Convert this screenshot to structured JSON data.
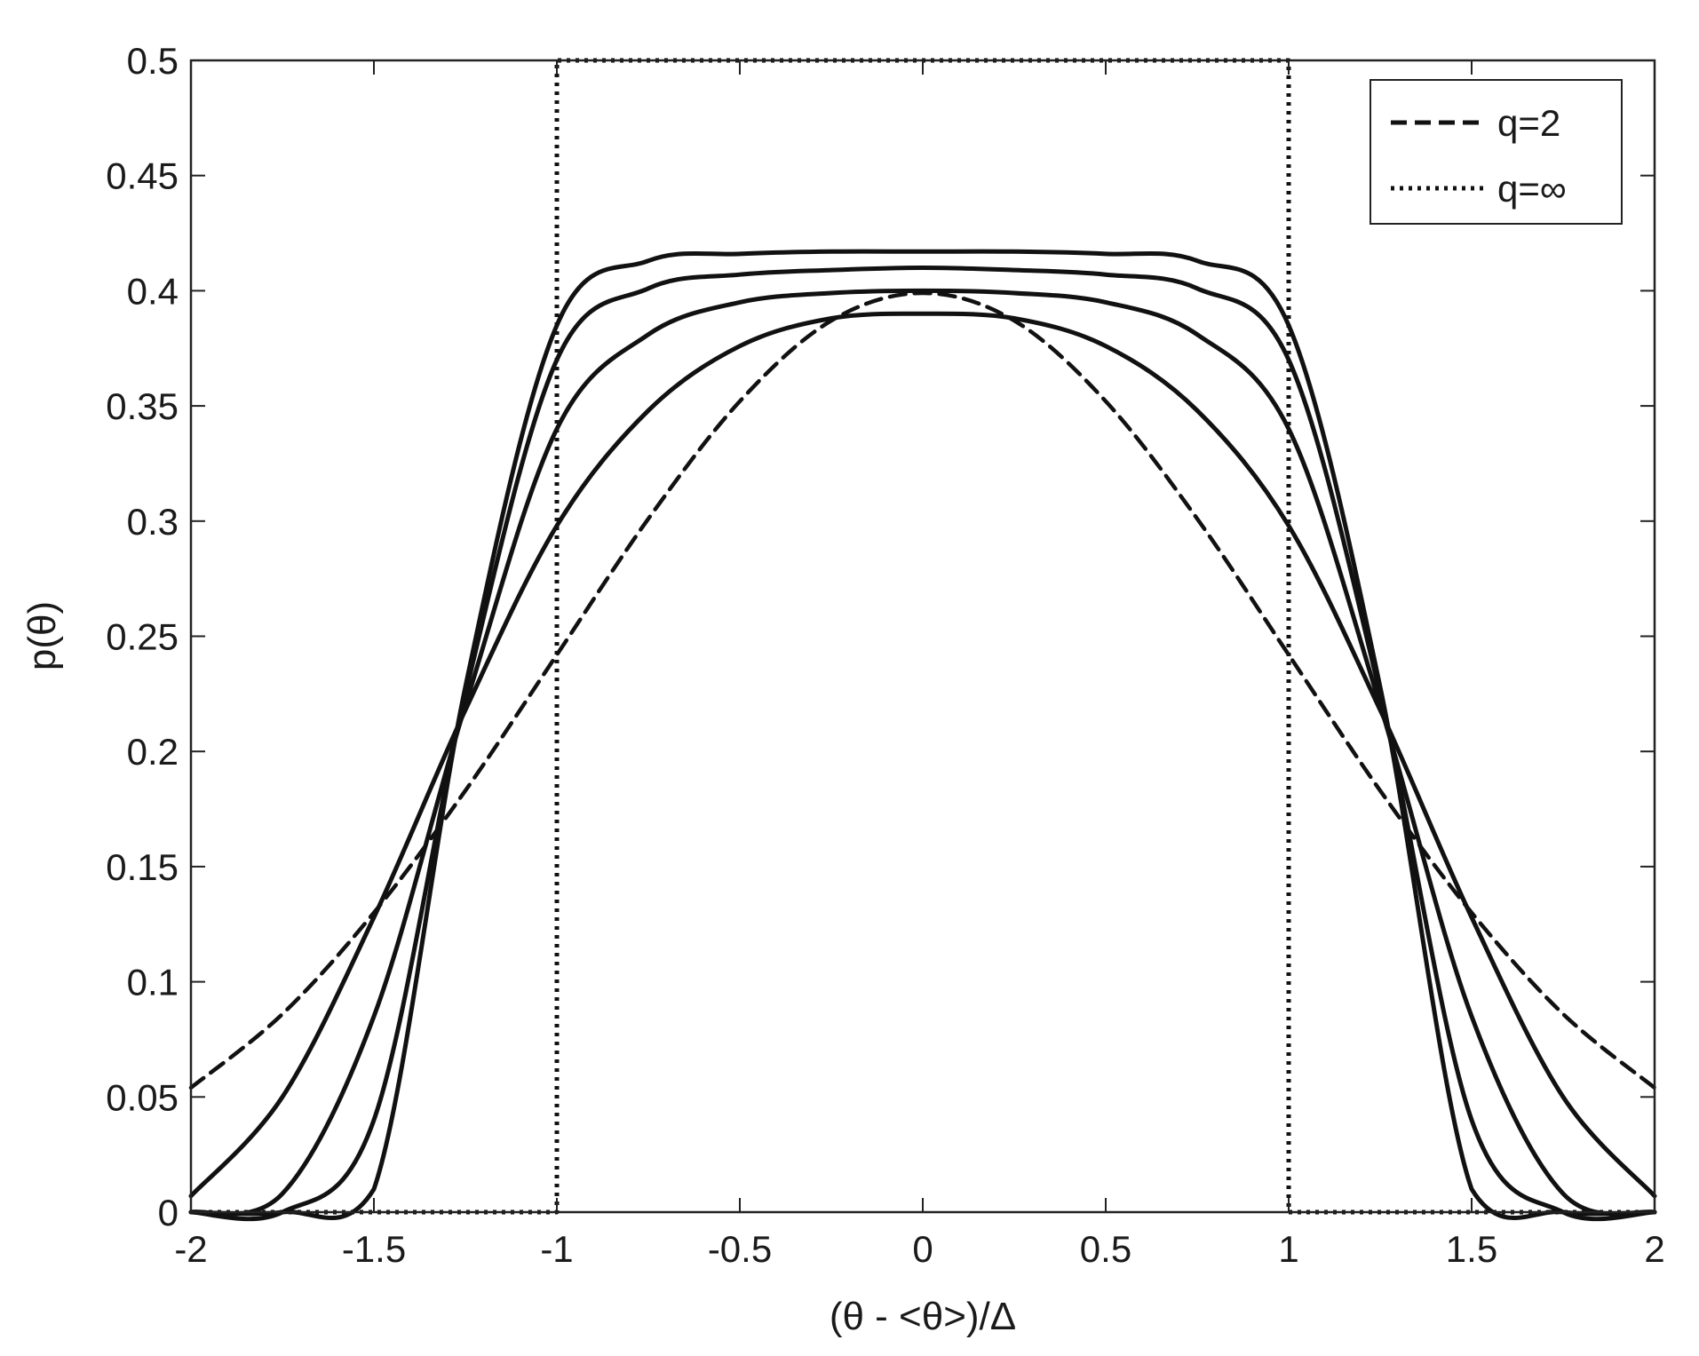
{
  "chart_data": {
    "type": "line",
    "title": "",
    "xlabel": "(θ - <θ>)/Δ",
    "ylabel": "p(θ)",
    "xlim": [
      -2,
      2
    ],
    "ylim": [
      0,
      0.5
    ],
    "x_ticks": [
      "-2",
      "-1.5",
      "-1",
      "-0.5",
      "0",
      "0.5",
      "1",
      "1.5",
      "2"
    ],
    "y_ticks": [
      "0",
      "0.05",
      "0.1",
      "0.15",
      "0.2",
      "0.25",
      "0.3",
      "0.35",
      "0.4",
      "0.45",
      "0.5"
    ],
    "grid": false,
    "legend_position": "top-right",
    "legend": [
      {
        "label": "q=2",
        "style": "dashed"
      },
      {
        "label": "q=∞",
        "style": "dotted"
      }
    ],
    "series": [
      {
        "name": "q=2",
        "style": "dashed",
        "x": [
          -2,
          -1.75,
          -1.5,
          -1.25,
          -1,
          -0.75,
          -0.5,
          -0.25,
          0,
          0.25,
          0.5,
          0.75,
          1,
          1.25,
          1.5,
          1.75,
          2
        ],
        "y": [
          0.054,
          0.086,
          0.13,
          0.183,
          0.242,
          0.301,
          0.352,
          0.387,
          0.399,
          0.387,
          0.352,
          0.301,
          0.242,
          0.183,
          0.13,
          0.086,
          0.054
        ]
      },
      {
        "style": "solid",
        "x": [
          -2,
          -1.75,
          -1.5,
          -1.25,
          -1,
          -0.75,
          -0.5,
          -0.25,
          0,
          0.25,
          0.5,
          0.75,
          1,
          1.25,
          1.5,
          1.75,
          2
        ],
        "y": [
          0.007,
          0.05,
          0.128,
          0.218,
          0.298,
          0.348,
          0.376,
          0.388,
          0.39,
          0.388,
          0.376,
          0.348,
          0.298,
          0.218,
          0.128,
          0.05,
          0.007
        ]
      },
      {
        "style": "solid",
        "x": [
          -2,
          -1.75,
          -1.5,
          -1.25,
          -1,
          -0.75,
          -0.5,
          -0.25,
          0,
          0.25,
          0.5,
          0.75,
          1,
          1.25,
          1.5,
          1.75,
          2
        ],
        "y": [
          0.0,
          0.008,
          0.085,
          0.22,
          0.34,
          0.381,
          0.395,
          0.399,
          0.4,
          0.399,
          0.395,
          0.381,
          0.34,
          0.22,
          0.085,
          0.008,
          0.0
        ]
      },
      {
        "style": "solid",
        "x": [
          -2,
          -1.75,
          -1.5,
          -1.25,
          -1,
          -0.75,
          -0.5,
          -0.25,
          0,
          0.25,
          0.5,
          0.75,
          1,
          1.25,
          1.5,
          1.75,
          2
        ],
        "y": [
          0.0,
          0.0,
          0.04,
          0.225,
          0.37,
          0.401,
          0.407,
          0.409,
          0.41,
          0.409,
          0.407,
          0.401,
          0.37,
          0.225,
          0.04,
          0.0,
          0.0
        ]
      },
      {
        "style": "solid",
        "x": [
          -2,
          -1.75,
          -1.5,
          -1.25,
          -1,
          -0.75,
          -0.5,
          -0.25,
          0,
          0.25,
          0.5,
          0.75,
          1,
          1.25,
          1.5,
          1.75,
          2
        ],
        "y": [
          0.0,
          0.0,
          0.01,
          0.228,
          0.385,
          0.413,
          0.416,
          0.417,
          0.417,
          0.417,
          0.416,
          0.413,
          0.385,
          0.228,
          0.01,
          0.0,
          0.0
        ]
      },
      {
        "name": "q=∞",
        "style": "dotted",
        "x": [
          -2,
          -1,
          -1,
          1,
          1,
          2
        ],
        "y": [
          0,
          0,
          0.5,
          0.5,
          0,
          0
        ]
      }
    ]
  }
}
